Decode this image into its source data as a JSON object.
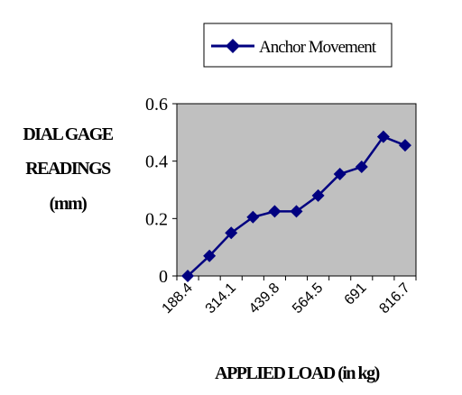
{
  "chart_data": {
    "type": "line",
    "xlabel": "APPLIED LOAD (in kg)",
    "ylabel_lines": [
      "DIAL GAGE",
      "READINGS",
      "(mm)"
    ],
    "x_tick_labels": [
      "188.4",
      "314.1",
      "439.8",
      "564.5",
      "691",
      "816.7"
    ],
    "ylim": [
      0,
      0.6
    ],
    "y_ticks": [
      0,
      0.2,
      0.4,
      0.6
    ],
    "y_tick_labels": [
      "0",
      "0.2",
      "0.4",
      "0.6"
    ],
    "grid": false,
    "legend_position": "top",
    "series": [
      {
        "name": "Anchor Movement",
        "x": [
          188.4,
          251.25,
          314.1,
          376.95,
          439.8,
          502.15,
          564.5,
          627.75,
          691,
          753.85,
          816.7
        ],
        "values": [
          0,
          0.07,
          0.15,
          0.205,
          0.225,
          0.225,
          0.28,
          0.355,
          0.38,
          0.485,
          0.455
        ]
      }
    ]
  },
  "colors": {
    "series": "#000080",
    "plot_background": "#c0c0c0",
    "axis": "#000000"
  }
}
